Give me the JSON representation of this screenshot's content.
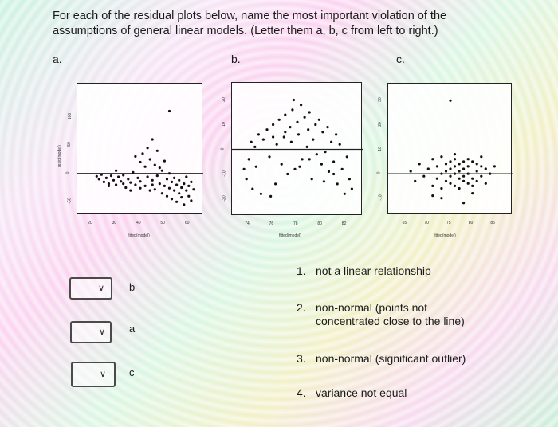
{
  "question": {
    "line1": "For each of the residual plots below, name the most important violation of the",
    "line2": "assumptions of general linear models. (Letter them a, b, c from left to right.)"
  },
  "panel_labels": [
    "a.",
    "b.",
    "c."
  ],
  "chart_data": [
    {
      "type": "scatter",
      "name": "a",
      "xlabel": "fitted(model)",
      "ylabel": "resid(model)",
      "xticks": [
        "20",
        "30",
        "40",
        "50",
        "60"
      ],
      "yticks": [
        "-50",
        "0",
        "50",
        "100"
      ],
      "xlim": [
        16,
        64
      ],
      "ylim": [
        -65,
        150
      ],
      "hline": 0,
      "points": [
        [
          22,
          -5
        ],
        [
          23,
          -10
        ],
        [
          24,
          -2
        ],
        [
          25,
          -15
        ],
        [
          26,
          -8
        ],
        [
          27,
          -18
        ],
        [
          28,
          -4
        ],
        [
          29,
          -12
        ],
        [
          30,
          5
        ],
        [
          30,
          -20
        ],
        [
          31,
          -6
        ],
        [
          32,
          -14
        ],
        [
          33,
          -3
        ],
        [
          34,
          -25
        ],
        [
          35,
          -10
        ],
        [
          36,
          -16
        ],
        [
          37,
          2
        ],
        [
          38,
          -20
        ],
        [
          38,
          30
        ],
        [
          39,
          -8
        ],
        [
          40,
          20
        ],
        [
          40,
          -14
        ],
        [
          41,
          35
        ],
        [
          42,
          -22
        ],
        [
          42,
          12
        ],
        [
          43,
          45
        ],
        [
          43,
          -6
        ],
        [
          44,
          25
        ],
        [
          44,
          -30
        ],
        [
          45,
          60
        ],
        [
          45,
          -12
        ],
        [
          46,
          15
        ],
        [
          46,
          -28
        ],
        [
          47,
          40
        ],
        [
          47,
          -4
        ],
        [
          48,
          10
        ],
        [
          48,
          -18
        ],
        [
          49,
          -35
        ],
        [
          49,
          5
        ],
        [
          50,
          -22
        ],
        [
          50,
          22
        ],
        [
          51,
          -10
        ],
        [
          51,
          -40
        ],
        [
          52,
          -26
        ],
        [
          52,
          0
        ],
        [
          53,
          -15
        ],
        [
          53,
          -45
        ],
        [
          54,
          -30
        ],
        [
          54,
          -8
        ],
        [
          55,
          -20
        ],
        [
          55,
          -50
        ],
        [
          56,
          -12
        ],
        [
          56,
          -35
        ],
        [
          57,
          -25
        ],
        [
          57,
          -42
        ],
        [
          58,
          -18
        ],
        [
          58,
          -55
        ],
        [
          59,
          -30
        ],
        [
          59,
          -6
        ],
        [
          60,
          -40
        ],
        [
          60,
          -22
        ],
        [
          61,
          -15
        ],
        [
          61,
          -48
        ],
        [
          62,
          -28
        ],
        [
          36,
          -30
        ],
        [
          33,
          -18
        ],
        [
          27,
          -22
        ],
        [
          52,
          110
        ],
        [
          40,
          -26
        ],
        [
          45,
          -20
        ]
      ]
    },
    {
      "type": "scatter",
      "name": "b",
      "xlabel": "fitted(model)",
      "yticks": [
        "-20",
        "-10",
        "0",
        "10",
        "20"
      ],
      "xticks": [
        "74",
        "76",
        "78",
        "80",
        "82"
      ],
      "xlim": [
        73,
        83
      ],
      "ylim": [
        -25,
        25
      ],
      "hline": 0,
      "points": [
        [
          73.6,
          -8
        ],
        [
          73.8,
          -12
        ],
        [
          74.0,
          -4
        ],
        [
          74.2,
          3
        ],
        [
          74.3,
          -16
        ],
        [
          74.5,
          1
        ],
        [
          74.8,
          6
        ],
        [
          75.0,
          -18
        ],
        [
          75.2,
          4
        ],
        [
          75.5,
          8
        ],
        [
          75.7,
          -3
        ],
        [
          76.0,
          10
        ],
        [
          76.2,
          -14
        ],
        [
          76.3,
          2
        ],
        [
          76.5,
          12
        ],
        [
          76.7,
          -6
        ],
        [
          76.9,
          5
        ],
        [
          77.0,
          14
        ],
        [
          77.2,
          -10
        ],
        [
          77.4,
          9
        ],
        [
          77.5,
          3
        ],
        [
          77.6,
          16
        ],
        [
          77.8,
          -8
        ],
        [
          78.0,
          11
        ],
        [
          78.1,
          6
        ],
        [
          78.3,
          18
        ],
        [
          78.4,
          -4
        ],
        [
          78.6,
          13
        ],
        [
          78.8,
          1
        ],
        [
          78.9,
          8
        ],
        [
          79.0,
          15
        ],
        [
          79.2,
          -12
        ],
        [
          79.3,
          4
        ],
        [
          79.5,
          10
        ],
        [
          79.6,
          -2
        ],
        [
          79.8,
          12
        ],
        [
          80.0,
          -6
        ],
        [
          80.1,
          7
        ],
        [
          80.3,
          -1
        ],
        [
          80.5,
          9
        ],
        [
          80.6,
          -9
        ],
        [
          80.8,
          3
        ],
        [
          81.0,
          -5
        ],
        [
          81.2,
          6
        ],
        [
          81.3,
          -14
        ],
        [
          81.5,
          2
        ],
        [
          81.7,
          -8
        ],
        [
          81.9,
          -18
        ],
        [
          82.1,
          -3
        ],
        [
          82.3,
          -12
        ],
        [
          82.5,
          -16
        ],
        [
          77.0,
          7
        ],
        [
          76.0,
          5
        ],
        [
          79.0,
          -4
        ],
        [
          80.2,
          -13
        ],
        [
          74.6,
          -7
        ],
        [
          78.2,
          -7
        ],
        [
          75.8,
          -19
        ],
        [
          81.0,
          -10
        ],
        [
          77.7,
          20
        ]
      ]
    },
    {
      "type": "scatter",
      "name": "c",
      "xlabel": "fitted(model)",
      "yticks": [
        "-10",
        "0",
        "10",
        "20",
        "30"
      ],
      "xticks": [
        "65",
        "70",
        "75",
        "80",
        "85"
      ],
      "xlim": [
        62,
        88
      ],
      "ylim": [
        -15,
        35
      ],
      "hline": 0,
      "points": [
        [
          66,
          1
        ],
        [
          67,
          -3
        ],
        [
          68,
          4
        ],
        [
          69,
          -1
        ],
        [
          70,
          2
        ],
        [
          71,
          -5
        ],
        [
          71,
          6
        ],
        [
          72,
          -2
        ],
        [
          72,
          3
        ],
        [
          73,
          0
        ],
        [
          73,
          -6
        ],
        [
          73,
          7
        ],
        [
          74,
          -3
        ],
        [
          74,
          4
        ],
        [
          74,
          1
        ],
        [
          75,
          -4
        ],
        [
          75,
          5
        ],
        [
          75,
          -1
        ],
        [
          75,
          2
        ],
        [
          76,
          6
        ],
        [
          76,
          -5
        ],
        [
          76,
          0
        ],
        [
          76,
          3
        ],
        [
          77,
          -2
        ],
        [
          77,
          4
        ],
        [
          77,
          -6
        ],
        [
          77,
          1
        ],
        [
          78,
          5
        ],
        [
          78,
          -3
        ],
        [
          78,
          2
        ],
        [
          78,
          -1
        ],
        [
          79,
          -4
        ],
        [
          79,
          6
        ],
        [
          79,
          0
        ],
        [
          79,
          3
        ],
        [
          80,
          -2
        ],
        [
          80,
          5
        ],
        [
          80,
          -5
        ],
        [
          81,
          1
        ],
        [
          81,
          4
        ],
        [
          81,
          -3
        ],
        [
          82,
          -1
        ],
        [
          82,
          3
        ],
        [
          83,
          2
        ],
        [
          83,
          -4
        ],
        [
          84,
          0
        ],
        [
          85,
          3
        ],
        [
          78,
          -12
        ],
        [
          71,
          -9
        ],
        [
          80,
          -8
        ],
        [
          76,
          8
        ],
        [
          73,
          -10
        ],
        [
          82,
          7
        ],
        [
          75,
          30
        ]
      ]
    }
  ],
  "options": [
    {
      "num": "1.",
      "text": "not a linear relationship"
    },
    {
      "num": "2.",
      "text": "non-normal (points not concentrated close to the line)"
    },
    {
      "num": "3.",
      "text": "non-normal (significant outlier)"
    },
    {
      "num": "4.",
      "text": "variance not equal"
    }
  ],
  "answers": [
    {
      "value": "b"
    },
    {
      "value": "a"
    },
    {
      "value": "c"
    }
  ]
}
